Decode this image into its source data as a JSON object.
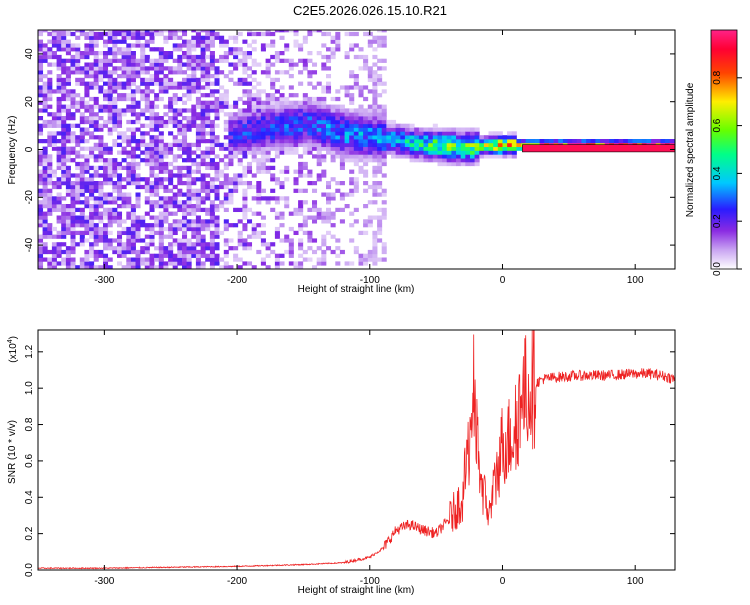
{
  "figure": {
    "title": "C2E5.2026.026.15.10.R21"
  },
  "chart_data": [
    {
      "type": "heatmap",
      "xlabel": "Height of straight line (km)",
      "ylabel": "Frequency (Hz)",
      "xlim": [
        -350,
        130
      ],
      "ylim": [
        -50,
        50
      ],
      "x_ticks": [
        -300,
        -200,
        -100,
        0,
        100
      ],
      "y_ticks": [
        -40,
        -20,
        0,
        20,
        40
      ],
      "grid": false,
      "colorbar": {
        "label": "Normalized spectral amplitude",
        "range": [
          0.0,
          1.0
        ],
        "ticks": [
          0.0,
          0.2,
          0.4,
          0.6,
          0.8
        ],
        "colormap": [
          "#ffffff",
          "#8a2be2",
          "#0000ff",
          "#00ffff",
          "#00ff00",
          "#ffff00",
          "#ff0000",
          "#ff1493"
        ]
      },
      "description_points": {
        "noise_region_x": [
          -350,
          -90
        ],
        "noise_amplitude": 0.12,
        "signal_ridge": [
          {
            "x": -205,
            "y": 6,
            "amp": 0.25
          },
          {
            "x": -180,
            "y": 8,
            "amp": 0.3
          },
          {
            "x": -150,
            "y": 10,
            "amp": 0.3
          },
          {
            "x": -120,
            "y": 6,
            "amp": 0.35
          },
          {
            "x": -90,
            "y": 4,
            "amp": 0.35
          },
          {
            "x": -70,
            "y": 2,
            "amp": 0.45
          },
          {
            "x": -50,
            "y": 1,
            "amp": 0.55
          },
          {
            "x": -30,
            "y": 0,
            "amp": 0.6
          },
          {
            "x": -15,
            "y": 1,
            "amp": 0.65
          },
          {
            "x": 0,
            "y": 1,
            "amp": 0.85
          },
          {
            "x": 20,
            "y": 1,
            "amp": 0.95
          },
          {
            "x": 130,
            "y": 1,
            "amp": 0.95
          }
        ]
      }
    },
    {
      "type": "line",
      "xlabel": "Height of straight line (km)",
      "ylabel": "SNR (10 * v/v)",
      "y_multiplier_label": "(x10",
      "y_multiplier_exp": "4",
      "y_multiplier_close": ")",
      "xlim": [
        -350,
        130
      ],
      "ylim": [
        0,
        1.32
      ],
      "x_ticks": [
        -300,
        -200,
        -100,
        0,
        100
      ],
      "y_ticks": [
        0.0,
        0.2,
        0.4,
        0.6,
        0.8,
        1.0,
        1.2
      ],
      "grid": false,
      "series": [
        {
          "color": "#ee2222",
          "x": [
            -350,
            -300,
            -250,
            -200,
            -150,
            -120,
            -100,
            -90,
            -80,
            -70,
            -60,
            -50,
            -40,
            -30,
            -25,
            -22,
            -20,
            -15,
            -10,
            -5,
            0,
            5,
            10,
            15,
            20,
            30,
            40,
            60,
            80,
            100,
            110,
            120,
            130
          ],
          "values": [
            0.01,
            0.01,
            0.015,
            0.02,
            0.03,
            0.04,
            0.07,
            0.12,
            0.22,
            0.25,
            0.22,
            0.2,
            0.28,
            0.4,
            0.7,
            1.0,
            0.75,
            0.45,
            0.3,
            0.5,
            0.7,
            0.72,
            0.8,
            0.95,
            1.0,
            1.05,
            1.06,
            1.07,
            1.07,
            1.08,
            1.08,
            1.07,
            1.05
          ]
        }
      ]
    }
  ]
}
